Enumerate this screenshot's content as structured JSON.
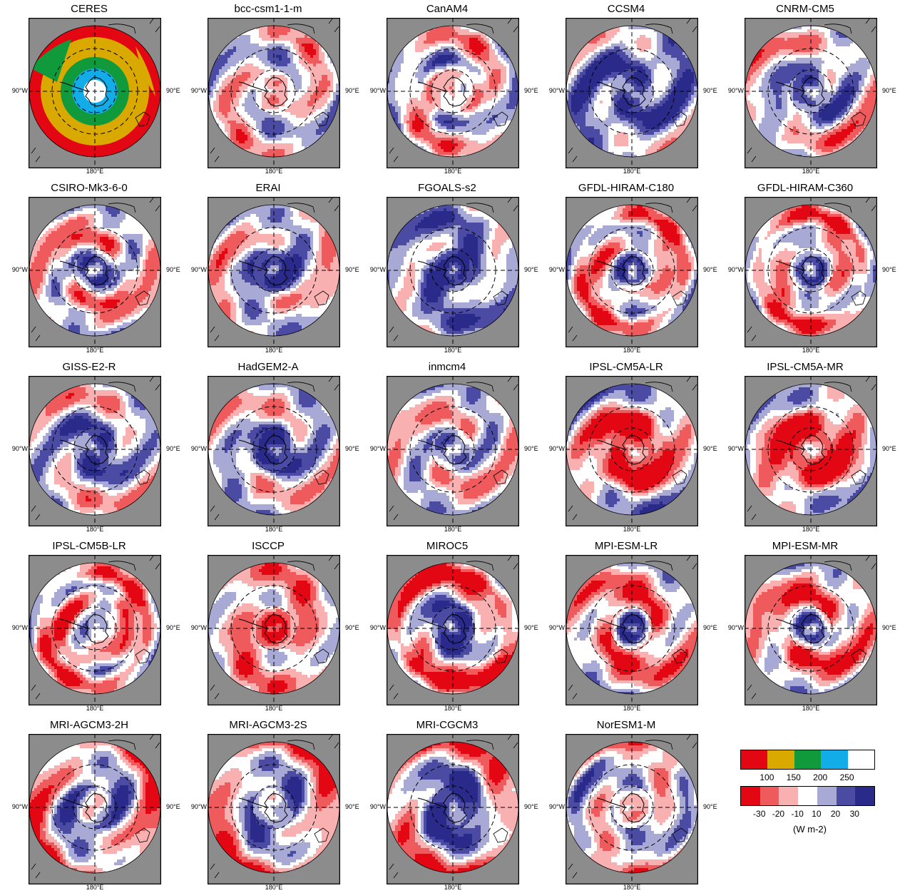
{
  "panels": [
    {
      "name": "CERES",
      "kind": "abs"
    },
    {
      "name": "bcc-csm1-1-m",
      "kind": "diff",
      "pattern": [
        0,
        -1,
        0,
        0.3,
        0,
        -0.8,
        0
      ],
      "seed": 1
    },
    {
      "name": "CanAM4",
      "kind": "diff",
      "pattern": [
        -1,
        0,
        -1,
        1,
        -0.5,
        -1,
        0.5
      ],
      "seed": 2
    },
    {
      "name": "CCSM4",
      "kind": "diff",
      "pattern": [
        0,
        2,
        2,
        1.5,
        1.5,
        1,
        0.5
      ],
      "seed": 3
    },
    {
      "name": "CNRM-CM5",
      "kind": "diff",
      "pattern": [
        0,
        2,
        1,
        1.5,
        0,
        -1,
        -0.5
      ],
      "seed": 4
    },
    {
      "name": "CSIRO-Mk3-6-0",
      "kind": "diff",
      "pattern": [
        0,
        3,
        0,
        -1.5,
        0,
        -1,
        0
      ],
      "seed": 5
    },
    {
      "name": "ERAI",
      "kind": "diff",
      "pattern": [
        0,
        3,
        2,
        0,
        0,
        -0.5,
        0
      ],
      "seed": 6
    },
    {
      "name": "FGOALS-s2",
      "kind": "diff",
      "pattern": [
        0,
        3,
        2,
        1,
        0.5,
        1.5,
        1
      ],
      "seed": 7
    },
    {
      "name": "GFDL-HIRAM-C180",
      "kind": "diff",
      "pattern": [
        0,
        3,
        -0.5,
        -1,
        0,
        -2,
        0
      ],
      "seed": 8
    },
    {
      "name": "GFDL-HIRAM-C360",
      "kind": "diff",
      "pattern": [
        0,
        3,
        -0.5,
        -1,
        0,
        -2,
        0
      ],
      "seed": 9
    },
    {
      "name": "GISS-E2-R",
      "kind": "diff",
      "pattern": [
        0,
        2,
        2,
        1,
        0,
        -0.5,
        0
      ],
      "seed": 10
    },
    {
      "name": "HadGEM2-A",
      "kind": "diff",
      "pattern": [
        0,
        3,
        2,
        0,
        0,
        0,
        0
      ],
      "seed": 11
    },
    {
      "name": "inmcm4",
      "kind": "diff",
      "pattern": [
        0,
        2,
        0,
        -0.5,
        0,
        -0.5,
        0
      ],
      "seed": 12
    },
    {
      "name": "IPSL-CM5A-LR",
      "kind": "diff",
      "pattern": [
        0,
        -2,
        -3,
        -3,
        -1,
        0,
        1
      ],
      "seed": 13
    },
    {
      "name": "IPSL-CM5A-MR",
      "kind": "diff",
      "pattern": [
        0,
        -2,
        -3,
        -3,
        -1,
        0,
        1
      ],
      "seed": 14
    },
    {
      "name": "IPSL-CM5B-LR",
      "kind": "diff",
      "pattern": [
        0,
        1,
        -0.5,
        -2,
        0,
        -2,
        0
      ],
      "seed": 15
    },
    {
      "name": "ISCCP",
      "kind": "diff",
      "pattern": [
        -1,
        -3,
        -1,
        -1,
        -1,
        -1,
        -0.5
      ],
      "seed": 16
    },
    {
      "name": "MIROC5",
      "kind": "diff",
      "pattern": [
        0,
        3,
        2,
        0,
        -1,
        -3,
        -1
      ],
      "seed": 17
    },
    {
      "name": "MPI-ESM-LR",
      "kind": "diff",
      "pattern": [
        0,
        3,
        -1,
        -2,
        -1,
        -1,
        0
      ],
      "seed": 18
    },
    {
      "name": "MPI-ESM-MR",
      "kind": "diff",
      "pattern": [
        0,
        3,
        -1,
        -2,
        -1,
        -1,
        0
      ],
      "seed": 19
    },
    {
      "name": "MRI-AGCM3-2H",
      "kind": "diff",
      "pattern": [
        0,
        0,
        2,
        1,
        0,
        -1,
        -2
      ],
      "seed": 20
    },
    {
      "name": "MRI-AGCM3-2S",
      "kind": "diff",
      "pattern": [
        0,
        0,
        2,
        1,
        0,
        -1,
        -2
      ],
      "seed": 21
    },
    {
      "name": "MRI-CGCM3",
      "kind": "diff",
      "pattern": [
        0,
        2,
        3,
        2,
        0,
        -1,
        -2
      ],
      "seed": 22
    },
    {
      "name": "NorESM1-M",
      "kind": "diff",
      "pattern": [
        0,
        -1,
        0.5,
        -0.5,
        0,
        1,
        -1
      ],
      "seed": 23
    }
  ],
  "axis_labels": {
    "west": "90°W",
    "east": "90°E",
    "south": "180°E"
  },
  "legend": {
    "abs_colors": [
      "#e30613",
      "#d9a900",
      "#109a3c",
      "#12ade8",
      "#ffffff"
    ],
    "abs_ticks": [
      "100",
      "150",
      "200",
      "250"
    ],
    "diff_colors": [
      "#e30613",
      "#ef5a5c",
      "#f8b0b0",
      "#ffffff",
      "#a9a9d6",
      "#4b4ba3",
      "#2a2a8a"
    ],
    "diff_ticks": [
      "-30",
      "-20",
      "-10",
      "10",
      "20",
      "30"
    ],
    "units": "(W m-2)"
  },
  "colors": {
    "land_gray": "#8c8c8c",
    "coast": "#000000"
  }
}
